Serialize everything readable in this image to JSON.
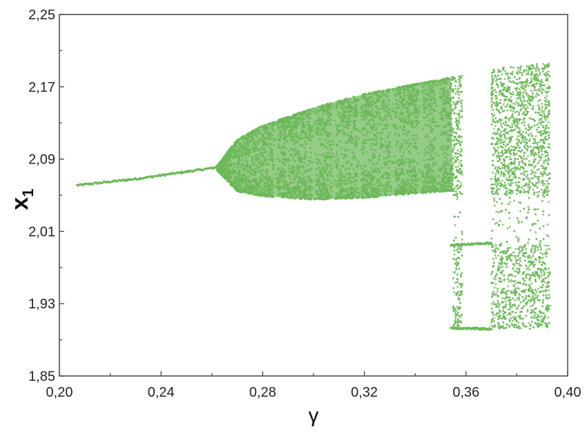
{
  "chart_data": {
    "type": "scatter",
    "title": "",
    "xlabel": "γ",
    "ylabel": "x",
    "ylabel_subscript": "1",
    "xlim": [
      0.2,
      0.4
    ],
    "ylim": [
      1.85,
      2.25
    ],
    "x_ticks": [
      0.2,
      0.24,
      0.28,
      0.32,
      0.36,
      0.4
    ],
    "x_tick_labels": [
      "0,20",
      "0,24",
      "0,28",
      "0,32",
      "0,36",
      "0,40"
    ],
    "y_ticks": [
      1.85,
      1.93,
      2.01,
      2.09,
      2.17,
      2.25
    ],
    "y_tick_labels": [
      "1,85",
      "1,93",
      "2,01",
      "2,09",
      "2,17",
      "2,25"
    ],
    "grid": false,
    "legend": "none",
    "point_color": "#6db85a",
    "series": [
      {
        "description_kind": "bifurcation diagram",
        "fixed_point_branch": [
          [
            0.207,
            2.061
          ],
          [
            0.23,
            2.068
          ],
          [
            0.26,
            2.08
          ],
          [
            0.262,
            2.081
          ]
        ],
        "chaotic_band_upper": [
          [
            0.262,
            2.082
          ],
          [
            0.27,
            2.112
          ],
          [
            0.28,
            2.127
          ],
          [
            0.3,
            2.147
          ],
          [
            0.32,
            2.162
          ],
          [
            0.34,
            2.173
          ],
          [
            0.355,
            2.181
          ]
        ],
        "chaotic_band_lower": [
          [
            0.262,
            2.078
          ],
          [
            0.27,
            2.054
          ],
          [
            0.28,
            2.049
          ],
          [
            0.3,
            2.045
          ],
          [
            0.32,
            2.047
          ],
          [
            0.34,
            2.052
          ],
          [
            0.355,
            2.055
          ]
        ],
        "periodic_windows_x": [
          0.285,
          0.3,
          0.308,
          0.318,
          0.331,
          0.342,
          0.349
        ],
        "wide_band_x_range": [
          0.355,
          0.393
        ],
        "wide_band_upper": [
          [
            0.355,
            2.18
          ],
          [
            0.37,
            2.19
          ],
          [
            0.393,
            2.197
          ]
        ],
        "wide_band_lower": [
          [
            0.355,
            1.905
          ],
          [
            0.37,
            1.902
          ],
          [
            0.393,
            1.902
          ]
        ],
        "window_x_range": [
          0.3585,
          0.37
        ],
        "window_branches_y": [
          [
            1.995,
            1.997
          ],
          [
            1.903,
            1.902
          ]
        ],
        "dense_upper_region_bottom": 2.05,
        "dense_lower_region_top": 1.985
      }
    ]
  }
}
